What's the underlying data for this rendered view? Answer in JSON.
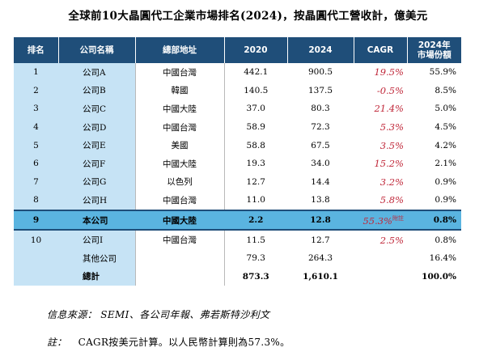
{
  "title": "全球前10大晶圓代工企業市場排名(2024)，按晶圓代工營收計，億美元",
  "headers": {
    "rank": "排名",
    "name": "公司名稱",
    "hq": "總部地址",
    "y2020": "2020",
    "y2024": "2024",
    "cagr": "CAGR",
    "share_line1": "2024年",
    "share_line2": "市場份額"
  },
  "rows": [
    {
      "rank": "1",
      "name": "公司A",
      "hq": "中國台灣",
      "v2020": "442.1",
      "v2024": "900.5",
      "cagr": "19.5%",
      "share": "55.9%"
    },
    {
      "rank": "2",
      "name": "公司B",
      "hq": "韓國",
      "v2020": "140.5",
      "v2024": "137.5",
      "cagr": "-0.5%",
      "share": "8.5%"
    },
    {
      "rank": "3",
      "name": "公司C",
      "hq": "中國大陸",
      "v2020": "37.0",
      "v2024": "80.3",
      "cagr": "21.4%",
      "share": "5.0%"
    },
    {
      "rank": "4",
      "name": "公司D",
      "hq": "中國台灣",
      "v2020": "58.9",
      "v2024": "72.3",
      "cagr": "5.3%",
      "share": "4.5%"
    },
    {
      "rank": "5",
      "name": "公司E",
      "hq": "美國",
      "v2020": "58.8",
      "v2024": "67.5",
      "cagr": "3.5%",
      "share": "4.2%"
    },
    {
      "rank": "6",
      "name": "公司F",
      "hq": "中國大陸",
      "v2020": "19.3",
      "v2024": "34.0",
      "cagr": "15.2%",
      "share": "2.1%"
    },
    {
      "rank": "7",
      "name": "公司G",
      "hq": "以色列",
      "v2020": "12.7",
      "v2024": "14.4",
      "cagr": "3.2%",
      "share": "0.9%"
    },
    {
      "rank": "8",
      "name": "公司H",
      "hq": "中國台灣",
      "v2020": "11.0",
      "v2024": "13.8",
      "cagr": "5.8%",
      "share": "0.9%"
    }
  ],
  "highlight_row": {
    "rank": "9",
    "name": "本公司",
    "hq": "中國大陸",
    "v2020": "2.2",
    "v2024": "12.8",
    "cagr": "55.3%",
    "note": "附註",
    "share": "0.8%"
  },
  "row10": {
    "rank": "10",
    "name": "公司I",
    "hq": "中國台灣",
    "v2020": "11.5",
    "v2024": "12.7",
    "cagr": "2.5%",
    "share": "0.8%"
  },
  "others": {
    "name": "其他公司",
    "v2020": "79.3",
    "v2024": "264.3",
    "share": "16.4%"
  },
  "total": {
    "name": "總計",
    "v2020": "873.3",
    "v2024": "1,610.1",
    "share": "100.0%"
  },
  "source": "信息來源： SEMI、各公司年報、弗若斯特沙利文",
  "footnote": {
    "label": "註：",
    "text": "CAGR按美元計算。以人民幣計算則為57.3%。"
  }
}
